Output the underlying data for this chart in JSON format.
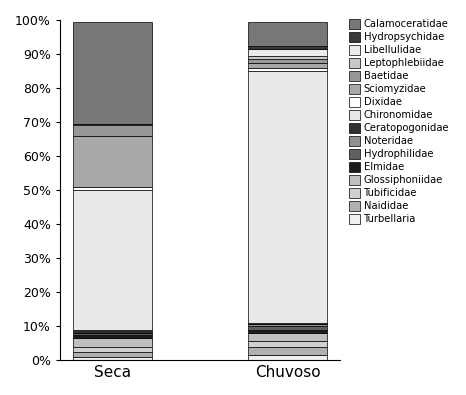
{
  "categories": [
    "Seca",
    "Chuvoso"
  ],
  "groups": [
    {
      "name": "Turbellaria",
      "color": "#f0f0f0",
      "values": [
        1.0,
        1.5
      ]
    },
    {
      "name": "Naididae",
      "color": "#b0b0b0",
      "values": [
        1.5,
        2.5
      ]
    },
    {
      "name": "Tubificidae",
      "color": "#d0d0d0",
      "values": [
        1.5,
        1.5
      ]
    },
    {
      "name": "Glossiphoniidae",
      "color": "#c0c0c0",
      "values": [
        2.5,
        2.5
      ]
    },
    {
      "name": "Elmidae",
      "color": "#1c1c1c",
      "values": [
        1.0,
        1.0
      ]
    },
    {
      "name": "Hydrophilidae",
      "color": "#606060",
      "values": [
        0.5,
        1.0
      ]
    },
    {
      "name": "Noteridae",
      "color": "#909090",
      "values": [
        0.0,
        0.5
      ]
    },
    {
      "name": "Ceratopogonidae",
      "color": "#303030",
      "values": [
        1.0,
        0.5
      ]
    },
    {
      "name": "Chironomidae",
      "color": "#e8e8e8",
      "values": [
        41.0,
        74.0
      ]
    },
    {
      "name": "Dixidae",
      "color": "#ffffff",
      "values": [
        1.0,
        1.0
      ]
    },
    {
      "name": "Sciomyzidae",
      "color": "#a8a8a8",
      "values": [
        15.0,
        1.5
      ]
    },
    {
      "name": "Baetidae",
      "color": "#989898",
      "values": [
        3.0,
        1.0
      ]
    },
    {
      "name": "Leptophlebiidae",
      "color": "#c8c8c8",
      "values": [
        0.5,
        1.0
      ]
    },
    {
      "name": "Libellulidae",
      "color": "#ebebeb",
      "values": [
        0.0,
        2.0
      ]
    },
    {
      "name": "Hydropsychidae",
      "color": "#383838",
      "values": [
        0.0,
        1.0
      ]
    },
    {
      "name": "Calamoceratidae",
      "color": "#787878",
      "values": [
        30.0,
        7.0
      ]
    }
  ],
  "ylim": [
    0,
    100
  ],
  "yticks": [
    0,
    10,
    20,
    30,
    40,
    50,
    60,
    70,
    80,
    90,
    100
  ],
  "yticklabels": [
    "0%",
    "10%",
    "20%",
    "30%",
    "40%",
    "50%",
    "60%",
    "70%",
    "80%",
    "90%",
    "100%"
  ],
  "bar_width": 0.45,
  "edgecolor": "#000000",
  "figsize": [
    4.66,
    3.95
  ],
  "dpi": 100
}
